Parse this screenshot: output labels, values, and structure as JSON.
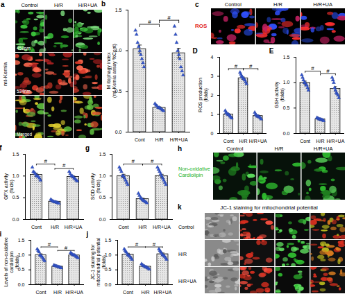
{
  "chart_data": [
    {
      "type": "bar",
      "panel": "b",
      "ylabel": "M itophagy index (mt-Kemia assay %Cont)",
      "categories": [
        "Cont",
        "H/R",
        "H/R+UA"
      ],
      "values": [
        1.02,
        0.3,
        0.97
      ],
      "errors": [
        0.05,
        0.01,
        0.06
      ],
      "points": [
        [
          1.25,
          1.2,
          1.1,
          1.05,
          1.0,
          0.95,
          0.9,
          0.85,
          0.8
        ],
        [
          0.35,
          0.33,
          0.32,
          0.3,
          0.3,
          0.29,
          0.28,
          0.27,
          0.26
        ],
        [
          1.3,
          1.2,
          1.1,
          1.0,
          0.95,
          0.9,
          0.8,
          0.75,
          0.7
        ]
      ],
      "color": "#e6e6e6",
      "marker": "triangle",
      "ylim": [
        0,
        1.5
      ],
      "yticks": [
        {
          "value": 0,
          "label": "0.0"
        },
        {
          "value": 0.5,
          "label": "0.5"
        },
        {
          "value": 1,
          "label": "1.0"
        },
        {
          "value": 1.5,
          "label": "1.5"
        }
      ],
      "significance": [
        {
          "groups": [
            "Cont",
            "H/R"
          ],
          "label": "#"
        },
        {
          "groups": [
            "H/R",
            "H/R+UA"
          ],
          "label": "#"
        }
      ]
    },
    {
      "type": "bar",
      "panel": "D",
      "ylabel": "ROS production (folds)",
      "categories": [
        "Cont",
        "H/R",
        "H/R+UA"
      ],
      "values": [
        1.0,
        2.9,
        0.92
      ],
      "errors": [
        0.04,
        0.06,
        0.04
      ],
      "points": [
        [
          1.2,
          1.1,
          1.05,
          1.0,
          1.0,
          0.95,
          0.9,
          0.85,
          0.8
        ],
        [
          3.2,
          3.1,
          3.0,
          2.95,
          2.9,
          2.85,
          2.8,
          2.7,
          2.6
        ],
        [
          1.1,
          1.0,
          0.95,
          0.9,
          0.9,
          0.88,
          0.85,
          0.8,
          0.75
        ]
      ],
      "color": "#e6e6e6",
      "marker": "triangle",
      "ylim": [
        0,
        4
      ],
      "yticks": [
        0,
        1,
        2,
        3,
        4
      ],
      "significance": [
        {
          "groups": [
            "Cont",
            "H/R"
          ],
          "label": "#"
        },
        {
          "groups": [
            "H/R",
            "H/R+UA"
          ],
          "label": "#"
        }
      ]
    },
    {
      "type": "bar",
      "panel": "E",
      "ylabel": "GSH activity (folds)",
      "categories": [
        "Cont",
        "H/R",
        "H/R+UA"
      ],
      "values": [
        1.0,
        0.28,
        0.88
      ],
      "errors": [
        0.03,
        0.01,
        0.04
      ],
      "points": [
        [
          1.15,
          1.1,
          1.05,
          1.0,
          1.0,
          0.95,
          0.95,
          0.9,
          0.85
        ],
        [
          0.31,
          0.3,
          0.29,
          0.28,
          0.28,
          0.27,
          0.27,
          0.26,
          0.25
        ],
        [
          1.1,
          1.05,
          1.0,
          0.9,
          0.85,
          0.8,
          0.78,
          0.75,
          0.7
        ]
      ],
      "color": "#e6e6e6",
      "marker": "triangle",
      "ylim": [
        0,
        1.5
      ],
      "yticks": [
        {
          "value": 0,
          "label": "0.0"
        },
        {
          "value": 0.5,
          "label": "0.5"
        },
        {
          "value": 1,
          "label": "1.0"
        },
        {
          "value": 1.5,
          "label": "1.5"
        }
      ],
      "significance": [
        {
          "groups": [
            "Cont",
            "H/R"
          ],
          "label": "#"
        },
        {
          "groups": [
            "H/R",
            "H/R+UA"
          ],
          "label": "#"
        }
      ]
    },
    {
      "type": "bar",
      "panel": "f",
      "ylabel": "GPX activity (folds)",
      "categories": [
        "Cont",
        "H/R",
        "H/R+UA"
      ],
      "values": [
        1.03,
        0.41,
        0.98
      ],
      "errors": [
        0.03,
        0.01,
        0.02
      ],
      "points": [
        [
          1.2,
          1.1,
          1.08,
          1.05,
          1.0,
          1.0,
          0.98,
          0.95,
          0.9
        ],
        [
          0.46,
          0.44,
          0.42,
          0.41,
          0.4,
          0.4,
          0.39,
          0.38,
          0.37
        ],
        [
          1.1,
          1.05,
          1.0,
          1.0,
          0.98,
          0.95,
          0.93,
          0.9,
          0.88
        ]
      ],
      "color": "#e6e6e6",
      "marker": "triangle",
      "ylim": [
        0,
        1.5
      ],
      "yticks": [
        {
          "value": 0,
          "label": "0.0"
        },
        {
          "value": 0.5,
          "label": "0.5"
        },
        {
          "value": 1,
          "label": "1.0"
        },
        {
          "value": 1.5,
          "label": "1.5"
        }
      ],
      "significance": [
        {
          "groups": [
            "Cont",
            "H/R"
          ],
          "label": "#"
        },
        {
          "groups": [
            "H/R",
            "H/R+UA"
          ],
          "label": "#"
        }
      ]
    },
    {
      "type": "bar",
      "panel": "g",
      "ylabel": "SOD activity (folds)",
      "categories": [
        "Cont",
        "H/R",
        "H/R+UA"
      ],
      "values": [
        1.0,
        0.47,
        1.0
      ],
      "errors": [
        0.04,
        0.02,
        0.04
      ],
      "points": [
        [
          1.2,
          1.15,
          1.1,
          1.0,
          1.0,
          0.95,
          0.9,
          0.85,
          0.8
        ],
        [
          0.6,
          0.55,
          0.5,
          0.48,
          0.45,
          0.43,
          0.42,
          0.4,
          0.38
        ],
        [
          1.2,
          1.15,
          1.1,
          1.05,
          1.0,
          0.95,
          0.9,
          0.85,
          0.8
        ]
      ],
      "color": "#e6e6e6",
      "marker": "triangle",
      "ylim": [
        0,
        1.5
      ],
      "yticks": [
        {
          "value": 0,
          "label": "0.0"
        },
        {
          "value": 0.5,
          "label": "0.5"
        },
        {
          "value": 1,
          "label": "1.0"
        },
        {
          "value": 1.5,
          "label": "1.5"
        }
      ],
      "significance": [
        {
          "groups": [
            "Cont",
            "H/R"
          ],
          "label": "#"
        },
        {
          "groups": [
            "H/R",
            "H/R+UA"
          ],
          "label": "#"
        }
      ]
    },
    {
      "type": "bar",
      "panel": "i",
      "ylabel": "Levels of non-oxidative cardiolipin (folds)",
      "categories": [
        "Cont",
        "H/R",
        "H/R+UA"
      ],
      "values": [
        1.0,
        0.61,
        0.99
      ],
      "errors": [
        0.04,
        0.01,
        0.02
      ],
      "points": [
        [
          1.2,
          1.15,
          1.1,
          1.0,
          0.98,
          0.95,
          0.9,
          0.85,
          0.8
        ],
        [
          0.66,
          0.64,
          0.63,
          0.62,
          0.61,
          0.6,
          0.59,
          0.58,
          0.56
        ],
        [
          1.08,
          1.05,
          1.02,
          1.0,
          1.0,
          0.98,
          0.95,
          0.93,
          0.9
        ]
      ],
      "color": "#e6e6e6",
      "marker": "triangle",
      "ylim": [
        0,
        1.5
      ],
      "yticks": [
        {
          "value": 0,
          "label": "0.0"
        },
        {
          "value": 0.5,
          "label": "0.5"
        },
        {
          "value": 1,
          "label": "1.0"
        },
        {
          "value": 1.5,
          "label": "1.5"
        }
      ],
      "significance": [
        {
          "groups": [
            "Cont",
            "H/R"
          ],
          "label": "#"
        },
        {
          "groups": [
            "H/R",
            "H/R+UA"
          ],
          "label": "#"
        }
      ]
    },
    {
      "type": "bar",
      "panel": "j",
      "ylabel": "JC-1 staining for mitochondrial potential (folds)",
      "categories": [
        "Cont",
        "H/R",
        "H/R+UA"
      ],
      "values": [
        1.02,
        0.61,
        1.03
      ],
      "errors": [
        0.04,
        0.02,
        0.04
      ],
      "points": [
        [
          1.2,
          1.15,
          1.1,
          1.05,
          1.0,
          0.98,
          0.95,
          0.9,
          0.85
        ],
        [
          0.7,
          0.66,
          0.64,
          0.62,
          0.6,
          0.59,
          0.57,
          0.55,
          0.52
        ],
        [
          1.2,
          1.15,
          1.1,
          1.05,
          1.0,
          0.98,
          0.95,
          0.9,
          0.85
        ]
      ],
      "color": "#e6e6e6",
      "marker": "triangle",
      "ylim": [
        0,
        1.5
      ],
      "yticks": [
        {
          "value": 0,
          "label": "0.0"
        },
        {
          "value": 0.5,
          "label": "0.5"
        },
        {
          "value": 1,
          "label": "1.0"
        },
        {
          "value": 1.5,
          "label": "1.5"
        }
      ],
      "significance": [
        {
          "groups": [
            "Cont",
            "H/R"
          ],
          "label": "#"
        },
        {
          "groups": [
            "H/R",
            "H/R+UA"
          ],
          "label": "#"
        }
      ]
    }
  ],
  "images": [
    {
      "panel": "a",
      "columns": [
        "Control",
        "H/R",
        "H/R+UA"
      ],
      "rows": [
        "458nm",
        "534nm",
        "Merged"
      ],
      "side_label": "mt-Kemia"
    },
    {
      "panel": "c",
      "label": "ROS",
      "columns": [
        "Control",
        "H/R",
        "H/R+UA"
      ]
    },
    {
      "panel": "h",
      "label": "Non-oxidative Cardiolipin",
      "columns": [
        "Control",
        "H/R",
        "H/R+UA"
      ]
    },
    {
      "panel": "k",
      "title": "JC-1 staining for mitochondrial potential",
      "rows": [
        "Control",
        "H/R",
        "H/R+UA"
      ]
    }
  ]
}
